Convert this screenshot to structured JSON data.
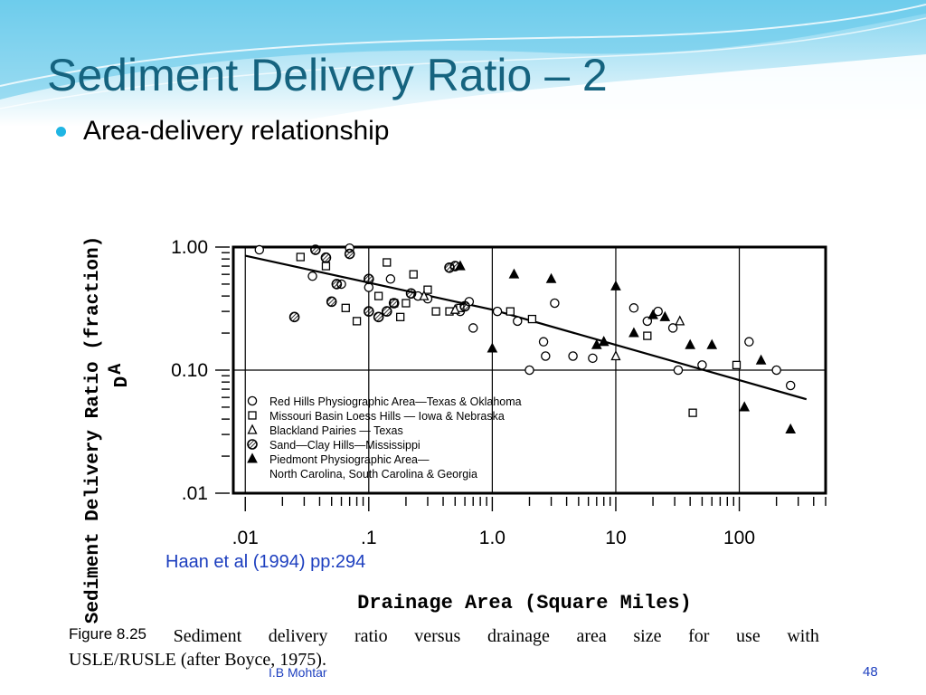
{
  "slide": {
    "title": "Sediment Delivery Ratio – 2",
    "bullet": "Area-delivery relationship",
    "citation": "Haan et al (1994) pp:294",
    "footer_author": "I.B Mohtar",
    "page_number": "48",
    "accent_color": "#15637f",
    "link_color": "#1d3fbf"
  },
  "caption": {
    "figure_label": "Figure 8.25",
    "line1": [
      "Sediment",
      "delivery",
      "ratio",
      "versus",
      "drainage",
      "area",
      "size",
      "for",
      "use",
      "with"
    ],
    "line2": "USLE/RUSLE (after Boyce, 1975)."
  },
  "chart_data": {
    "type": "scatter",
    "title": "",
    "xlabel": "Drainage Area (Square Miles)",
    "ylabel": "Sediment Delivery Ratio (fraction)",
    "ylabel_symbol": "D",
    "ylabel_subscript": "A",
    "x_scale": "log",
    "y_scale": "log",
    "xlim": [
      0.008,
      500
    ],
    "ylim": [
      0.01,
      1.0
    ],
    "x_ticks": [
      {
        "value": 0.01,
        "label": ".01"
      },
      {
        "value": 0.1,
        "label": ".1"
      },
      {
        "value": 1,
        "label": "1.0"
      },
      {
        "value": 10,
        "label": "10"
      },
      {
        "value": 100,
        "label": "100"
      }
    ],
    "y_ticks": [
      {
        "value": 1.0,
        "label": "1.00"
      },
      {
        "value": 0.1,
        "label": "0.10"
      },
      {
        "value": 0.01,
        "label": ".01"
      }
    ],
    "grid": true,
    "legend_position": "bottom-left",
    "series": [
      {
        "name": "Red Hills Physiographic Area—Texas & Oklahoma",
        "marker": "open-circle",
        "points": [
          [
            0.013,
            0.95
          ],
          [
            0.035,
            0.58
          ],
          [
            0.07,
            0.98
          ],
          [
            0.06,
            0.5
          ],
          [
            0.1,
            0.47
          ],
          [
            0.15,
            0.55
          ],
          [
            0.25,
            0.4
          ],
          [
            0.3,
            0.38
          ],
          [
            0.55,
            0.3
          ],
          [
            0.65,
            0.36
          ],
          [
            0.7,
            0.22
          ],
          [
            1.1,
            0.3
          ],
          [
            1.6,
            0.25
          ],
          [
            2.0,
            0.1
          ],
          [
            2.6,
            0.17
          ],
          [
            2.7,
            0.13
          ],
          [
            3.2,
            0.35
          ],
          [
            4.5,
            0.13
          ],
          [
            6.5,
            0.125
          ],
          [
            14,
            0.32
          ],
          [
            18,
            0.25
          ],
          [
            22,
            0.3
          ],
          [
            29,
            0.22
          ],
          [
            32,
            0.1
          ],
          [
            50,
            0.11
          ],
          [
            120,
            0.17
          ],
          [
            200,
            0.1
          ],
          [
            260,
            0.075
          ]
        ]
      },
      {
        "name": "Missouri Basin Loess Hills — Iowa & Nebraska",
        "marker": "open-square",
        "points": [
          [
            0.028,
            0.83
          ],
          [
            0.045,
            0.7
          ],
          [
            0.065,
            0.32
          ],
          [
            0.08,
            0.25
          ],
          [
            0.12,
            0.4
          ],
          [
            0.14,
            0.75
          ],
          [
            0.16,
            0.35
          ],
          [
            0.18,
            0.27
          ],
          [
            0.2,
            0.35
          ],
          [
            0.23,
            0.6
          ],
          [
            0.3,
            0.45
          ],
          [
            0.35,
            0.3
          ],
          [
            0.45,
            0.3
          ],
          [
            0.55,
            0.32
          ],
          [
            1.4,
            0.3
          ],
          [
            2.1,
            0.26
          ],
          [
            18,
            0.19
          ],
          [
            42,
            0.045
          ],
          [
            95,
            0.11
          ]
        ]
      },
      {
        "name": "Blackland Pairies — Texas",
        "marker": "open-triangle",
        "points": [
          [
            0.28,
            0.4
          ],
          [
            0.5,
            0.31
          ],
          [
            8,
            0.17
          ],
          [
            10,
            0.13
          ],
          [
            33,
            0.25
          ]
        ]
      },
      {
        "name": "Sand—Clay Hills—Mississippi",
        "marker": "hatched-circle",
        "points": [
          [
            0.025,
            0.27
          ],
          [
            0.037,
            0.95
          ],
          [
            0.045,
            0.82
          ],
          [
            0.05,
            0.36
          ],
          [
            0.055,
            0.5
          ],
          [
            0.07,
            0.88
          ],
          [
            0.1,
            0.55
          ],
          [
            0.1,
            0.3
          ],
          [
            0.12,
            0.27
          ],
          [
            0.14,
            0.3
          ],
          [
            0.16,
            0.35
          ],
          [
            0.22,
            0.42
          ],
          [
            0.5,
            0.7
          ],
          [
            0.6,
            0.33
          ],
          [
            0.45,
            0.68
          ]
        ]
      },
      {
        "name": "Piedmont Physiographic Area— North Carolina, South Carolina & Georgia",
        "marker": "filled-triangle",
        "points": [
          [
            0.55,
            0.7
          ],
          [
            1.0,
            0.15
          ],
          [
            1.5,
            0.6
          ],
          [
            3.0,
            0.55
          ],
          [
            7,
            0.16
          ],
          [
            8,
            0.17
          ],
          [
            10,
            0.48
          ],
          [
            14,
            0.2
          ],
          [
            20,
            0.28
          ],
          [
            25,
            0.27
          ],
          [
            40,
            0.16
          ],
          [
            60,
            0.16
          ],
          [
            110,
            0.05
          ],
          [
            150,
            0.12
          ],
          [
            260,
            0.033
          ]
        ]
      }
    ],
    "fit_line": {
      "points": [
        [
          0.01,
          0.85
        ],
        [
          1.0,
          0.31
        ],
        [
          350,
          0.058
        ]
      ]
    },
    "legend": [
      "Red Hills Physiographic Area—Texas & Oklahoma",
      "Missouri Basin Loess Hills — Iowa & Nebraska",
      "Blackland Pairies — Texas",
      "Sand—Clay Hills—Mississippi",
      "Piedmont Physiographic Area—",
      "North Carolina, South Carolina & Georgia"
    ]
  }
}
